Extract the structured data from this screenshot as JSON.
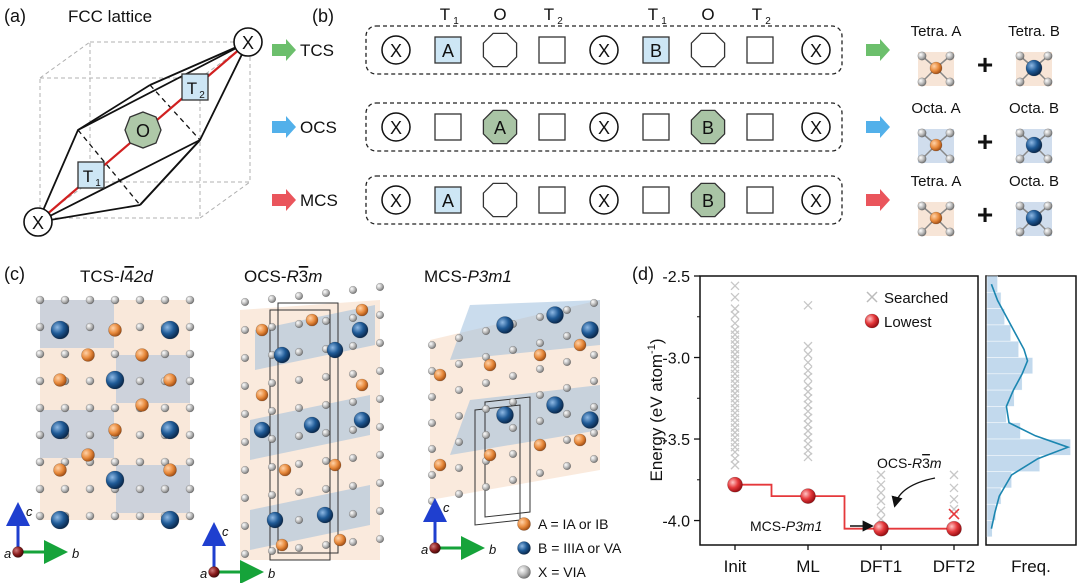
{
  "panel_a": {
    "label": "(a)",
    "title": "FCC lattice",
    "site_x": "X",
    "site_o": "O",
    "site_t1": "T",
    "site_t1_sub": "1",
    "site_t2": "T",
    "site_t2_sub": "2"
  },
  "panel_b": {
    "label": "(b)",
    "header": [
      {
        "main": "T",
        "sub": "1"
      },
      {
        "main": "O",
        "sub": ""
      },
      {
        "main": "T",
        "sub": "2"
      },
      {
        "main": "T",
        "sub": "1"
      },
      {
        "main": "O",
        "sub": ""
      },
      {
        "main": "T",
        "sub": "2"
      }
    ],
    "rows": [
      {
        "name": "TCS",
        "cells": [
          "X",
          "A",
          "",
          "",
          "X",
          "B",
          "",
          "",
          "X"
        ],
        "left": "Tetra. A",
        "right": "Tetra. B",
        "arrow_color": "#5cb85c"
      },
      {
        "name": "OCS",
        "cells": [
          "X",
          "",
          "A",
          "",
          "X",
          "",
          "B",
          "",
          "X"
        ],
        "left": "Octa. A",
        "right": "Octa. B",
        "arrow_color": "#3fa7e8"
      },
      {
        "name": "MCS",
        "cells": [
          "X",
          "A",
          "",
          "",
          "X",
          "",
          "B",
          "",
          "X"
        ],
        "left": "Tetra. A",
        "right": "Octa. B",
        "arrow_color": "#e8434a"
      }
    ],
    "plus": "+"
  },
  "panel_c": {
    "label": "(c)",
    "titles": [
      {
        "prefix": "TCS-",
        "sym": "I",
        "bar": "4",
        "rest": "2d"
      },
      {
        "prefix": "OCS-",
        "sym": "R",
        "bar": "3",
        "rest": "m"
      },
      {
        "prefix": "MCS-",
        "sym": "P",
        "bar": "",
        "rest": "3m1"
      }
    ],
    "axes": {
      "a": "a",
      "b": "b",
      "c": "c"
    },
    "legend": [
      {
        "text": "A = IA or IB",
        "color": "#e88a3c"
      },
      {
        "text": "B = IIIA or VA",
        "color": "#1f5a96"
      },
      {
        "text": "X = VIA",
        "color": "#a8a8a8"
      }
    ]
  },
  "panel_d": {
    "label": "(d)",
    "chart_data": {
      "type": "scatter",
      "ylabel": "Energy (eV atom",
      "ylabel_sup": "-1",
      "ylabel_close": ")",
      "categories": [
        "Init",
        "ML",
        "DFT1",
        "DFT2"
      ],
      "ylim": [
        -4.15,
        -2.5
      ],
      "yticks": [
        "-2.5",
        "-3.0",
        "-3.5",
        "-4.0"
      ],
      "ytick_values": [
        -2.5,
        -3.0,
        -3.5,
        -4.0
      ],
      "series": [
        {
          "name": "Searched",
          "color": "#c7c7c7",
          "points": [
            [
              0,
              -2.56
            ],
            [
              0,
              -2.63
            ],
            [
              0,
              -2.7
            ],
            [
              0,
              -2.74
            ],
            [
              0,
              -2.79
            ],
            [
              0,
              -2.83
            ],
            [
              0,
              -2.86
            ],
            [
              0,
              -2.89
            ],
            [
              0,
              -2.92
            ],
            [
              0,
              -2.95
            ],
            [
              0,
              -2.98
            ],
            [
              0,
              -3.01
            ],
            [
              0,
              -3.04
            ],
            [
              0,
              -3.07
            ],
            [
              0,
              -3.1
            ],
            [
              0,
              -3.13
            ],
            [
              0,
              -3.16
            ],
            [
              0,
              -3.19
            ],
            [
              0,
              -3.22
            ],
            [
              0,
              -3.25
            ],
            [
              0,
              -3.28
            ],
            [
              0,
              -3.31
            ],
            [
              0,
              -3.34
            ],
            [
              0,
              -3.37
            ],
            [
              0,
              -3.4
            ],
            [
              0,
              -3.43
            ],
            [
              0,
              -3.46
            ],
            [
              0,
              -3.49
            ],
            [
              0,
              -3.52
            ],
            [
              0,
              -3.55
            ],
            [
              0,
              -3.58
            ],
            [
              0,
              -3.62
            ],
            [
              0,
              -3.66
            ],
            [
              1,
              -2.68
            ],
            [
              1,
              -2.93
            ],
            [
              1,
              -2.98
            ],
            [
              1,
              -3.03
            ],
            [
              1,
              -3.08
            ],
            [
              1,
              -3.12
            ],
            [
              1,
              -3.17
            ],
            [
              1,
              -3.21
            ],
            [
              1,
              -3.25
            ],
            [
              1,
              -3.29
            ],
            [
              1,
              -3.33
            ],
            [
              1,
              -3.37
            ],
            [
              1,
              -3.41
            ],
            [
              1,
              -3.45
            ],
            [
              1,
              -3.49
            ],
            [
              1,
              -3.53
            ],
            [
              1,
              -3.57
            ],
            [
              1,
              -3.61
            ],
            [
              2,
              -3.72
            ],
            [
              2,
              -3.78
            ],
            [
              2,
              -3.83
            ],
            [
              2,
              -3.88
            ],
            [
              2,
              -3.94
            ],
            [
              2,
              -3.99
            ],
            [
              3,
              -3.72
            ],
            [
              3,
              -3.8
            ],
            [
              3,
              -3.87
            ],
            [
              3,
              -3.93
            ]
          ]
        },
        {
          "name": "Lowest",
          "color": "#e5383b",
          "points": [
            [
              0,
              -3.78
            ],
            [
              1,
              -3.85
            ],
            [
              2,
              -4.05
            ],
            [
              3,
              -4.05
            ]
          ]
        }
      ],
      "highlight_cross": [
        3,
        -3.96
      ],
      "annotations": [
        {
          "text": "OCS-",
          "sym": "R",
          "bar": "3",
          "rest": "m",
          "target": "DFT2"
        },
        {
          "text": "MCS-",
          "sym": "P",
          "bar": "",
          "rest": "3m1",
          "target": "DFT1"
        }
      ],
      "freq_label": "Freq.",
      "freq_bins": [
        {
          "y": -2.55,
          "v": 0.12
        },
        {
          "y": -2.65,
          "v": 0.16
        },
        {
          "y": -2.75,
          "v": 0.2
        },
        {
          "y": -2.85,
          "v": 0.27
        },
        {
          "y": -2.95,
          "v": 0.36
        },
        {
          "y": -3.05,
          "v": 0.52
        },
        {
          "y": -3.15,
          "v": 0.4
        },
        {
          "y": -3.25,
          "v": 0.31
        },
        {
          "y": -3.35,
          "v": 0.22
        },
        {
          "y": -3.45,
          "v": 0.38
        },
        {
          "y": -3.55,
          "v": 0.95
        },
        {
          "y": -3.65,
          "v": 0.6
        },
        {
          "y": -3.75,
          "v": 0.28
        },
        {
          "y": -3.85,
          "v": 0.16
        },
        {
          "y": -3.95,
          "v": 0.1
        },
        {
          "y": -4.05,
          "v": 0.06
        }
      ],
      "freq_curve": [
        [
          -2.55,
          0.05
        ],
        [
          -2.65,
          0.12
        ],
        [
          -2.75,
          0.22
        ],
        [
          -2.85,
          0.32
        ],
        [
          -2.95,
          0.42
        ],
        [
          -3.02,
          0.46
        ],
        [
          -3.1,
          0.4
        ],
        [
          -3.2,
          0.3
        ],
        [
          -3.3,
          0.22
        ],
        [
          -3.4,
          0.25
        ],
        [
          -3.48,
          0.55
        ],
        [
          -3.55,
          0.92
        ],
        [
          -3.62,
          0.58
        ],
        [
          -3.72,
          0.28
        ],
        [
          -3.85,
          0.14
        ],
        [
          -3.95,
          0.09
        ],
        [
          -4.05,
          0.05
        ]
      ]
    }
  }
}
